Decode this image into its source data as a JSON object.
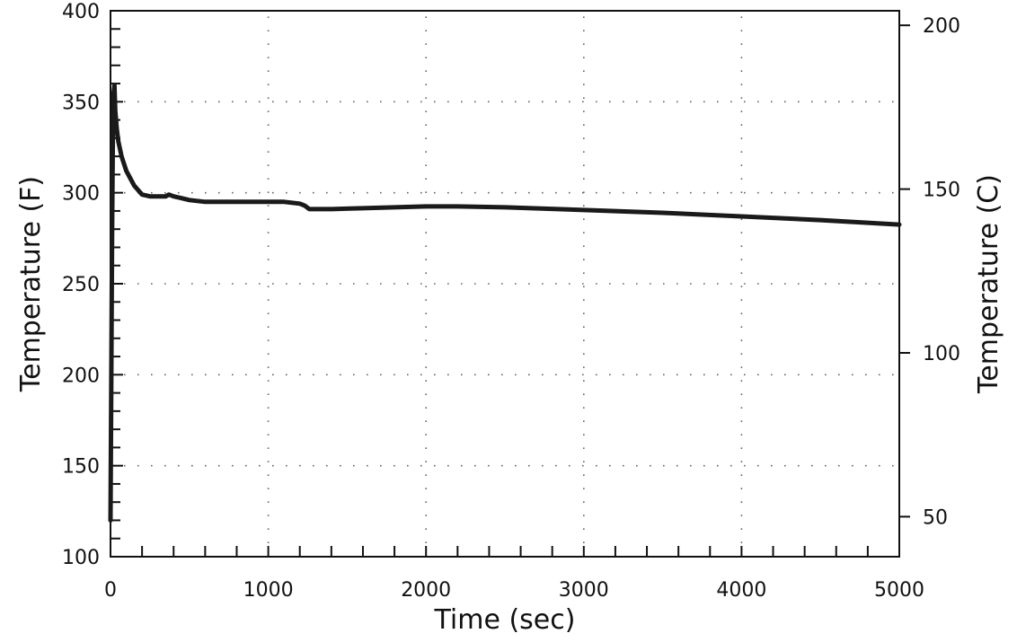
{
  "chart_data": {
    "type": "line",
    "title": "",
    "xlabel": "Time (sec)",
    "ylabel": "Temperature (F)",
    "y2label": "Temperature (C)",
    "xlim": [
      0,
      5000
    ],
    "ylim": [
      100,
      400
    ],
    "y2lim": [
      37.78,
      204.44
    ],
    "grid": true,
    "legend": "none",
    "line_color": "#1a1a1a",
    "x_ticks": [
      "0",
      "1000",
      "2000",
      "3000",
      "4000",
      "5000"
    ],
    "y_ticks": [
      "100",
      "150",
      "200",
      "250",
      "300",
      "350",
      "400"
    ],
    "y2_ticks": [
      "50",
      "100",
      "150",
      "200"
    ],
    "series": [
      {
        "x": [
          0,
          5,
          10,
          15,
          20,
          25,
          30,
          40,
          50,
          70,
          100,
          150,
          200,
          250,
          300,
          350,
          370,
          400,
          450,
          500,
          600,
          700,
          800,
          900,
          1000,
          1100,
          1200,
          1230,
          1260,
          1300,
          1400,
          1600,
          1800,
          2000,
          2200,
          2500,
          3000,
          3500,
          4000,
          4500,
          5000
        ],
        "y": [
          120,
          200,
          280,
          330,
          355,
          359,
          345,
          335,
          328,
          320,
          312,
          304,
          299,
          298,
          298,
          298,
          299,
          298,
          297,
          296,
          295,
          295,
          295,
          295,
          295,
          295,
          294,
          293,
          291,
          291,
          291,
          291.5,
          292,
          292.5,
          292.5,
          292,
          290.5,
          289,
          287,
          285,
          282.5
        ]
      }
    ]
  }
}
